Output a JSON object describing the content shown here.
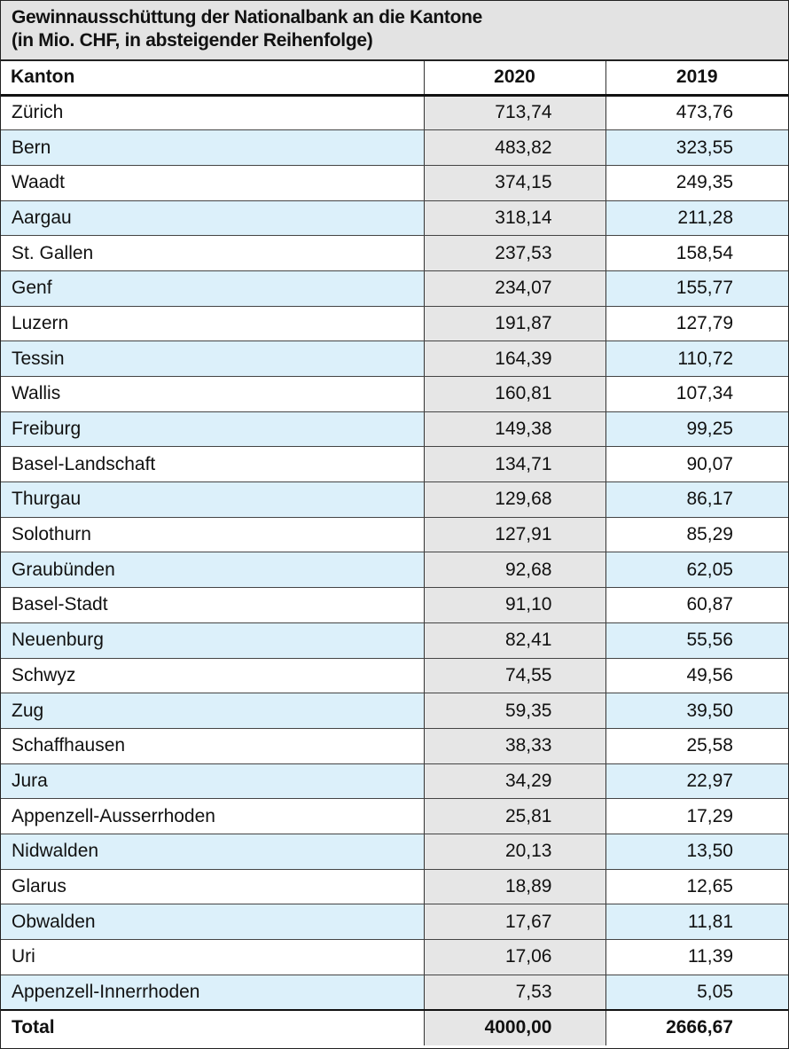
{
  "title": {
    "line1": "Gewinnausschüttung der Nationalbank an die Kantone",
    "line2": "(in Mio. CHF, in absteigender Reihenfolge)"
  },
  "table": {
    "headers": [
      "Kanton",
      "2020",
      "2019"
    ],
    "rows": [
      [
        "Zürich",
        "713,74",
        "473,76"
      ],
      [
        "Bern",
        "483,82",
        "323,55"
      ],
      [
        "Waadt",
        "374,15",
        "249,35"
      ],
      [
        "Aargau",
        "318,14",
        "211,28"
      ],
      [
        "St. Gallen",
        "237,53",
        "158,54"
      ],
      [
        "Genf",
        "234,07",
        "155,77"
      ],
      [
        "Luzern",
        "191,87",
        "127,79"
      ],
      [
        "Tessin",
        "164,39",
        "110,72"
      ],
      [
        "Wallis",
        "160,81",
        "107,34"
      ],
      [
        "Freiburg",
        "149,38",
        "99,25"
      ],
      [
        "Basel-Landschaft",
        "134,71",
        "90,07"
      ],
      [
        "Thurgau",
        "129,68",
        "86,17"
      ],
      [
        "Solothurn",
        "127,91",
        "85,29"
      ],
      [
        "Graubünden",
        "92,68",
        "62,05"
      ],
      [
        "Basel-Stadt",
        "91,10",
        "60,87"
      ],
      [
        "Neuenburg",
        "82,41",
        "55,56"
      ],
      [
        "Schwyz",
        "74,55",
        "49,56"
      ],
      [
        "Zug",
        "59,35",
        "39,50"
      ],
      [
        "Schaffhausen",
        "38,33",
        "25,58"
      ],
      [
        "Jura",
        "34,29",
        "22,97"
      ],
      [
        "Appenzell-Ausserrhoden",
        "25,81",
        "17,29"
      ],
      [
        "Nidwalden",
        "20,13",
        "13,50"
      ],
      [
        "Glarus",
        "18,89",
        "12,65"
      ],
      [
        "Obwalden",
        "17,67",
        "11,81"
      ],
      [
        "Uri",
        "17,06",
        "11,39"
      ],
      [
        "Appenzell-Innerrhoden",
        "7,53",
        "5,05"
      ]
    ],
    "total": [
      "Total",
      "4000,00",
      "2666,67"
    ]
  }
}
